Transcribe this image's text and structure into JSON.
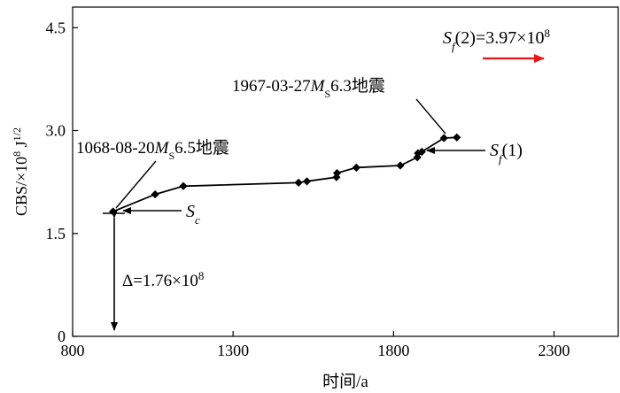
{
  "chart_data": {
    "type": "line",
    "title": "",
    "xlabel": "时间/a",
    "ylabel_main": "CBS/×10",
    "ylabel_exp": "8",
    "ylabel_unit": " J",
    "ylabel_unit_exp": "1/2",
    "xlim": [
      800,
      2500
    ],
    "ylim": [
      0,
      4.8
    ],
    "x_ticks": [
      800,
      1300,
      1800,
      2300
    ],
    "y_ticks": [
      0,
      1.5,
      3.0,
      4.5
    ],
    "x_tick_labels": [
      "800",
      "1300",
      "1800",
      "2300"
    ],
    "y_tick_labels": [
      "0",
      "1.5",
      "3.0",
      "4.5"
    ],
    "grid": false,
    "series": [
      {
        "x": [
          926,
          1057,
          1145,
          1504,
          1530,
          1622,
          1624,
          1684,
          1821,
          1874,
          1876,
          1888,
          1957,
          1997
        ],
        "y": [
          1.82,
          2.07,
          2.19,
          2.24,
          2.26,
          2.32,
          2.38,
          2.46,
          2.49,
          2.61,
          2.67,
          2.69,
          2.89,
          2.9
        ]
      }
    ],
    "annotations": {
      "event1": {
        "date": "1068-08-20",
        "mag_letter": "M",
        "mag_sub": "S",
        "mag_value": "6.5",
        "suffix": "地震"
      },
      "event2": {
        "date": "1967-03-27",
        "mag_letter": "M",
        "mag_sub": "S",
        "mag_value": "6.3",
        "suffix": "地震"
      },
      "sc": {
        "letter": "S",
        "sub": "c"
      },
      "sf1": {
        "letter": "S",
        "sub": "f",
        "arg": "(1)"
      },
      "sf2": {
        "letter": "S",
        "sub": "f",
        "arg": "(2)=3.97×10",
        "exp": "8"
      },
      "delta": {
        "text": "Δ=1.76×10",
        "exp": "8"
      }
    },
    "colors": {
      "line": "#000000",
      "marker": "#000000",
      "arrow_red": "#e8151b"
    }
  }
}
